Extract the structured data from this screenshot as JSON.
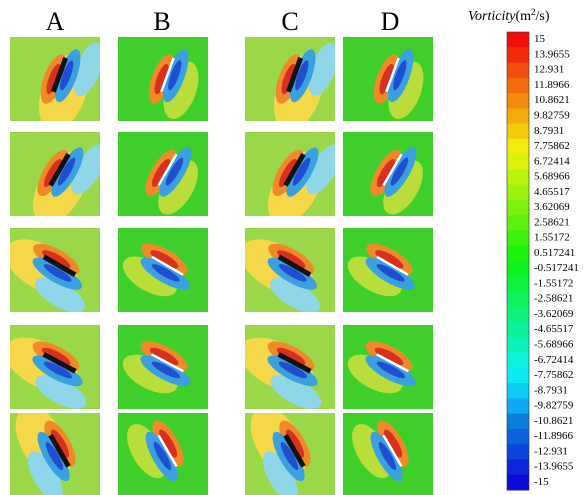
{
  "columns": [
    "A",
    "B",
    "C",
    "D"
  ],
  "colorbar": {
    "title": {
      "name": "Vorticity",
      "unit_open": "(m",
      "unit_power": "2",
      "unit_close": "/s)"
    },
    "labels": [
      15,
      13.9655,
      12.931,
      11.8966,
      10.8621,
      9.82759,
      8.7931,
      7.75862,
      6.72414,
      5.68966,
      4.65517,
      3.62069,
      2.58621,
      1.55172,
      0.517241,
      -0.517241,
      -1.55172,
      -2.58621,
      -3.62069,
      -4.65517,
      -5.68966,
      -6.72414,
      -7.75862,
      -8.7931,
      -9.82759,
      -10.8621,
      -11.8966,
      -12.931,
      -13.9655,
      -15
    ]
  }
}
